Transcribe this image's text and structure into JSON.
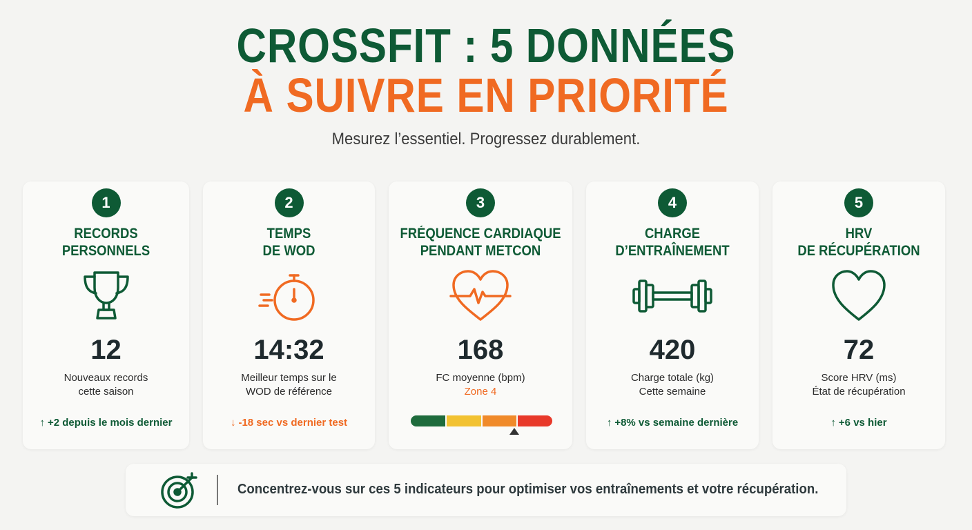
{
  "header": {
    "title_line1": "CROSSFIT : 5 DONNÉES",
    "title_line2": "À SUIVRE EN PRIORITÉ",
    "subtitle": "Mesurez l’essentiel. Progressez durablement."
  },
  "cards": [
    {
      "number": "1",
      "title_l1": "RECORDS",
      "title_l2": "PERSONNELS",
      "icon": "trophy-icon",
      "value": "12",
      "desc_l1": "Nouveaux records",
      "desc_l2": "cette saison",
      "trend_arrow": "↑",
      "trend_text": "+2 depuis le mois dernier"
    },
    {
      "number": "2",
      "title_l1": "TEMPS",
      "title_l2": "DE WOD",
      "icon": "stopwatch-icon",
      "value": "14:32",
      "desc_l1": "Meilleur temps sur le",
      "desc_l2": "WOD de référence",
      "trend_arrow": "↓",
      "trend_text": "-18 sec vs dernier test"
    },
    {
      "number": "3",
      "title_l1": "FRÉQUENCE CARDIAQUE",
      "title_l2": "PENDANT METCON",
      "icon": "heart-pulse-icon",
      "value": "168",
      "desc_l1": "FC moyenne (bpm)",
      "desc_l2": "Zone 4",
      "zones": [
        "#1e6b3c",
        "#f2c232",
        "#f08a2a",
        "#e8392a"
      ],
      "zone_level": 0.73
    },
    {
      "number": "4",
      "title_l1": "CHARGE",
      "title_l2": "D’ENTRAÎNEMENT",
      "icon": "dumbbell-icon",
      "value": "420",
      "desc_l1": "Charge totale (kg)",
      "desc_l2": "Cette semaine",
      "trend_arrow": "↑",
      "trend_text": "+8% vs semaine dernière"
    },
    {
      "number": "5",
      "title_l1": "HRV",
      "title_l2": "DE RÉCUPÉRATION",
      "icon": "heart-icon",
      "value": "72",
      "desc_l1": "Score HRV (ms)",
      "desc_l2": "État de récupération",
      "trend_arrow": "↑",
      "trend_text": "+6 vs hier"
    }
  ],
  "footer": {
    "icon": "target-icon",
    "message": "Concentrez-vous sur ces 5 indicateurs pour optimiser vos entraînements et votre récupération."
  },
  "colors": {
    "green": "#0e5a35",
    "orange": "#f06a22",
    "background": "#f4f4f2"
  }
}
